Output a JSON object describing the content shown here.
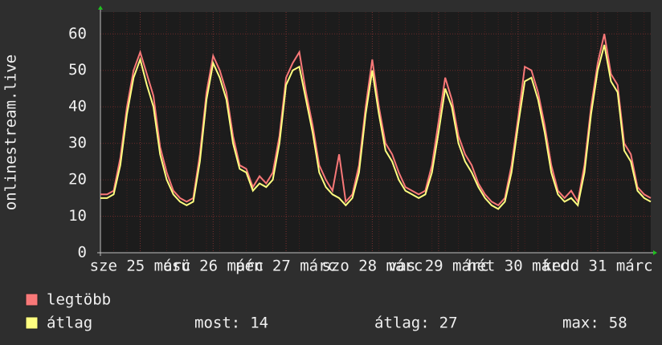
{
  "chart_data": {
    "type": "line",
    "y_label": "onlinestream.live",
    "categories": [
      null,
      null,
      null,
      null,
      null,
      null,
      "sze 25 márc",
      null,
      null,
      null,
      null,
      null,
      null,
      null,
      null,
      null,
      null,
      "csü 26 márc",
      null,
      null,
      null,
      null,
      null,
      null,
      null,
      null,
      null,
      null,
      "pén 27 márc",
      null,
      null,
      null,
      null,
      null,
      null,
      null,
      null,
      null,
      null,
      null,
      null,
      "szo 28 márc",
      null,
      null,
      null,
      null,
      null,
      null,
      null,
      null,
      null,
      "vas 29 márc",
      null,
      null,
      null,
      null,
      null,
      null,
      null,
      null,
      null,
      null,
      null,
      "hét 30 márc",
      null,
      null,
      null,
      null,
      null,
      null,
      null,
      null,
      null,
      null,
      null,
      "kedd 31 márc",
      null,
      null,
      null,
      null,
      null,
      null,
      null,
      null
    ],
    "series": [
      {
        "name": "legtöbb",
        "color": "#f87878",
        "values": [
          16,
          16,
          17,
          26,
          40,
          50,
          55,
          49,
          43,
          29,
          22,
          17,
          15,
          14,
          15,
          27,
          44,
          54,
          50,
          44,
          32,
          24,
          23,
          18,
          21,
          19,
          22,
          32,
          48,
          52,
          55,
          44,
          35,
          24,
          20,
          17,
          27,
          14,
          16,
          24,
          40,
          53,
          40,
          30,
          27,
          22,
          18,
          17,
          16,
          17,
          24,
          36,
          48,
          42,
          32,
          27,
          24,
          19,
          16,
          14,
          13,
          15,
          24,
          37,
          51,
          50,
          44,
          35,
          24,
          17,
          15,
          17,
          14,
          24,
          40,
          52,
          60,
          49,
          46,
          30,
          27,
          18,
          16,
          15
        ]
      },
      {
        "name": "átlag",
        "color": "#ffff80",
        "values": [
          15,
          15,
          16,
          24,
          38,
          48,
          53,
          46,
          40,
          27,
          20,
          16,
          14,
          13,
          14,
          25,
          42,
          52,
          48,
          42,
          30,
          23,
          22,
          17,
          19,
          18,
          20,
          30,
          46,
          50,
          51,
          42,
          33,
          22,
          18,
          16,
          15,
          13,
          15,
          22,
          38,
          50,
          38,
          28,
          25,
          20,
          17,
          16,
          15,
          16,
          22,
          33,
          45,
          40,
          30,
          25,
          22,
          18,
          15,
          13,
          12,
          14,
          22,
          35,
          47,
          48,
          42,
          33,
          22,
          16,
          14,
          15,
          13,
          22,
          38,
          50,
          57,
          47,
          44,
          28,
          25,
          17,
          15,
          14
        ]
      }
    ],
    "ylim": [
      0,
      66
    ],
    "yticks": [
      0,
      10,
      20,
      30,
      40,
      50,
      60
    ],
    "grid": true,
    "stats": [
      {
        "label": "most:",
        "value": 14
      },
      {
        "label": "átlag:",
        "value": 27
      },
      {
        "label": "max:",
        "value": 58
      }
    ]
  }
}
